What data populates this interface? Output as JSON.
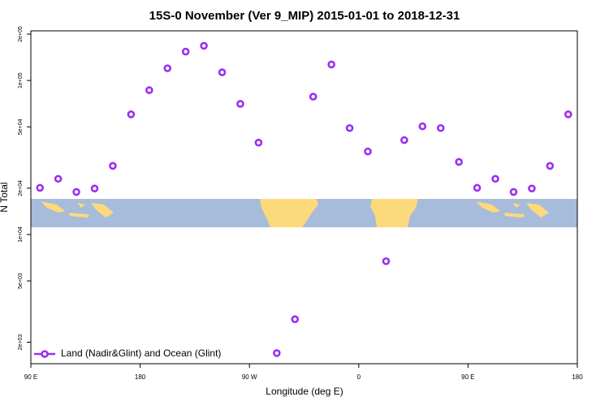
{
  "chart_data": {
    "type": "scatter",
    "title": "15S-0 November (Ver 9_MIP)   2015-01-01 to 2018-12-31",
    "x_label": "Longitude (deg E)",
    "y_label": "N Total",
    "log_y": true,
    "legend_position": "bottom-left",
    "xlim": [
      90,
      540
    ],
    "ylim": [
      1450,
      210000
    ],
    "xticks": [
      {
        "value": 90,
        "label": "90 E"
      },
      {
        "value": 180,
        "label": "180"
      },
      {
        "value": 270,
        "label": "90 W"
      },
      {
        "value": 360,
        "label": "0"
      },
      {
        "value": 450,
        "label": "90 E"
      },
      {
        "value": 540,
        "label": "180"
      }
    ],
    "yticks": [
      {
        "value": 2000,
        "label": "2e+03"
      },
      {
        "value": 5000,
        "label": "5e+03"
      },
      {
        "value": 10000,
        "label": "1e+04"
      },
      {
        "value": 20000,
        "label": "2e+04"
      },
      {
        "value": 50000,
        "label": "5e+04"
      },
      {
        "value": 100000,
        "label": "1e+05"
      },
      {
        "value": 200000,
        "label": "2e+05"
      }
    ],
    "series": [
      {
        "name": "Land (Nadir&Glint) and Ocean (Glint)",
        "color": "#9b2ff0",
        "x": [
          97.5,
          112.5,
          127.5,
          142.5,
          157.5,
          172.5,
          187.5,
          202.5,
          217.5,
          232.5,
          247.5,
          262.5,
          277.5,
          292.5,
          307.5,
          322.5,
          337.5,
          352.5,
          367.5,
          382.5,
          397.5,
          412.5,
          427.5,
          442.5,
          457.5,
          472.5,
          487.5,
          502.5,
          517.5,
          532.5
        ],
        "values": [
          20100,
          23000,
          18900,
          19900,
          27900,
          60300,
          86500,
          120000,
          154000,
          168000,
          113000,
          70500,
          39500,
          1700,
          2820,
          78500,
          127000,
          49100,
          34600,
          6710,
          41000,
          50400,
          49100,
          29600,
          20100,
          23000,
          18900,
          19900,
          27900,
          60300
        ]
      }
    ]
  }
}
